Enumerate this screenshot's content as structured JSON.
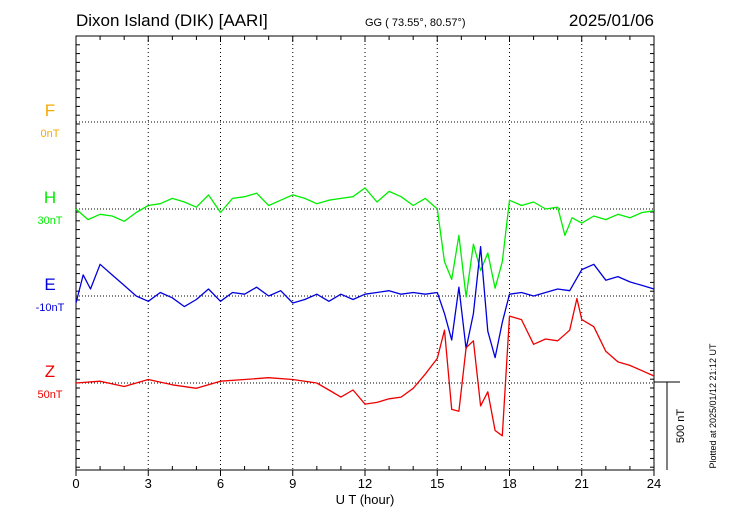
{
  "header": {
    "station": "Dixon Island (DIK)  [AARI]",
    "coords": "GG ( 73.55°,  80.57°)",
    "date": "2025/01/06"
  },
  "footer": {
    "plotted": "Plotted at 2025/01/12 21:12 UT"
  },
  "chart_data": {
    "type": "line",
    "title": "Dixon Island (DIK)  [AARI]",
    "xlabel": "U T (hour)",
    "xlim": [
      0,
      24
    ],
    "xticks": [
      0,
      3,
      6,
      9,
      12,
      15,
      18,
      21,
      24
    ],
    "grid": true,
    "scale_bar": {
      "label": "500 nT",
      "value": 500
    },
    "series": [
      {
        "name": "F",
        "baseline_label": "0nT",
        "color": "#f5a800",
        "x": [],
        "values": []
      },
      {
        "name": "H",
        "baseline_label": "30nT",
        "color": "#00ee00",
        "x": [
          0,
          0.5,
          1,
          1.5,
          2,
          2.5,
          3,
          3.5,
          4,
          4.5,
          5,
          5.5,
          6,
          6.5,
          7,
          7.5,
          8,
          8.5,
          9,
          9.5,
          10,
          10.5,
          11,
          11.5,
          12,
          12.5,
          13,
          13.5,
          14,
          14.5,
          15,
          15.3,
          15.6,
          15.9,
          16.2,
          16.5,
          16.8,
          17.1,
          17.4,
          17.7,
          18,
          18.5,
          19,
          19.5,
          20,
          20.3,
          20.6,
          21,
          21.5,
          22,
          22.5,
          23,
          23.5,
          24
        ],
        "values": [
          0,
          -60,
          -30,
          -40,
          -70,
          -20,
          20,
          30,
          60,
          40,
          10,
          80,
          -20,
          60,
          70,
          90,
          20,
          50,
          80,
          60,
          30,
          50,
          60,
          70,
          120,
          40,
          100,
          70,
          20,
          60,
          0,
          -300,
          -400,
          -150,
          -500,
          -200,
          -350,
          -250,
          -450,
          -300,
          50,
          20,
          40,
          0,
          10,
          -150,
          -50,
          -80,
          -40,
          -60,
          -30,
          -50,
          -20,
          -10
        ]
      },
      {
        "name": "E",
        "baseline_label": "-10nT",
        "color": "#0000dd",
        "x": [
          0,
          0.3,
          0.6,
          1,
          1.5,
          2,
          2.5,
          3,
          3.5,
          4,
          4.5,
          5,
          5.5,
          6,
          6.5,
          7,
          7.5,
          8,
          8.5,
          9,
          9.5,
          10,
          10.5,
          11,
          11.5,
          12,
          12.5,
          13,
          13.5,
          14,
          14.5,
          15,
          15.3,
          15.6,
          15.9,
          16.2,
          16.5,
          16.8,
          17.1,
          17.4,
          17.7,
          18,
          18.5,
          19,
          19.5,
          20,
          20.5,
          21,
          21.5,
          22,
          22.5,
          23,
          23.5,
          24
        ],
        "values": [
          -40,
          120,
          40,
          180,
          120,
          60,
          0,
          -30,
          20,
          -10,
          -60,
          -20,
          40,
          -30,
          20,
          10,
          50,
          0,
          30,
          -40,
          -20,
          10,
          -30,
          10,
          -20,
          10,
          20,
          30,
          10,
          20,
          10,
          20,
          -100,
          -250,
          50,
          -300,
          -100,
          280,
          -200,
          -350,
          -150,
          10,
          20,
          0,
          20,
          40,
          30,
          150,
          180,
          90,
          110,
          80,
          60,
          40
        ]
      },
      {
        "name": "Z",
        "baseline_label": "50nT",
        "color": "#ee0000",
        "x": [
          0,
          1,
          2,
          3,
          4,
          5,
          6,
          7,
          8,
          9,
          10,
          10.5,
          11,
          11.5,
          12,
          12.5,
          13,
          13.5,
          14,
          14.5,
          15,
          15.3,
          15.6,
          15.9,
          16.2,
          16.5,
          16.8,
          17.1,
          17.4,
          17.7,
          18,
          18.5,
          19,
          19.5,
          20,
          20.5,
          20.8,
          21,
          21.5,
          22,
          22.5,
          23,
          23.5,
          24
        ],
        "values": [
          0,
          10,
          -20,
          20,
          -10,
          -30,
          10,
          20,
          30,
          20,
          0,
          -40,
          -80,
          -40,
          -120,
          -110,
          -90,
          -80,
          -30,
          50,
          140,
          300,
          -150,
          -160,
          200,
          240,
          -130,
          -50,
          -270,
          -300,
          380,
          360,
          220,
          250,
          240,
          300,
          480,
          360,
          320,
          180,
          120,
          100,
          70,
          40
        ]
      }
    ]
  }
}
